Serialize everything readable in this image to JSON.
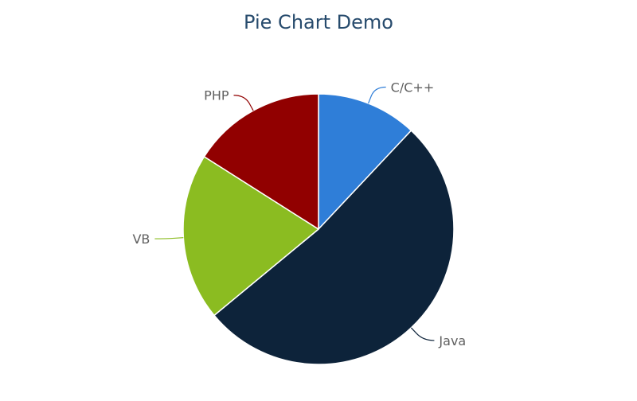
{
  "chart_data": {
    "type": "pie",
    "title": "Pie Chart Demo",
    "slices": [
      {
        "label": "C/C++",
        "value": 12,
        "color": "#2f7ed8"
      },
      {
        "label": "Java",
        "value": 52,
        "color": "#0d233a"
      },
      {
        "label": "VB",
        "value": 20,
        "color": "#8bbc21"
      },
      {
        "label": "PHP",
        "value": 16,
        "color": "#910000"
      }
    ],
    "start_angle": "12 o'clock, clockwise",
    "legend": "none",
    "data_labels": "outside with connector lines",
    "label_color": "#606060"
  }
}
